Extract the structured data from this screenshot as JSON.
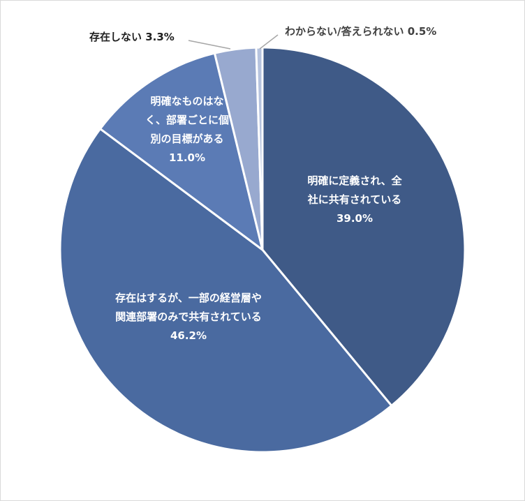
{
  "chart_data": {
    "type": "pie",
    "title": "",
    "start_angle_deg": 0,
    "direction": "clockwise",
    "slices": [
      {
        "label_lines": [
          "明確に定義され、全",
          "社に共有されている"
        ],
        "value_text": "39.0%",
        "value": 39.0,
        "color": "#3f5a87",
        "label_position": "inside"
      },
      {
        "label_lines": [
          "存在はするが、一部の経営層や",
          "関連部署のみで共有されている"
        ],
        "value_text": "46.2%",
        "value": 46.2,
        "color": "#4a6aa0",
        "label_position": "inside"
      },
      {
        "label_lines": [
          "明確なものはな",
          "く、部署ごとに個",
          "別の目標がある"
        ],
        "value_text": "11.0%",
        "value": 11.0,
        "color": "#5b7bb5",
        "label_position": "inside"
      },
      {
        "label_lines": [
          "存在しない 3.3%"
        ],
        "value_text": "",
        "value": 3.3,
        "color": "#98a9cf",
        "label_position": "outside"
      },
      {
        "label_lines": [
          "わからない/答えられない 0.5%"
        ],
        "value_text": "",
        "value": 0.5,
        "color": "#b6c3de",
        "label_position": "outside"
      }
    ]
  }
}
